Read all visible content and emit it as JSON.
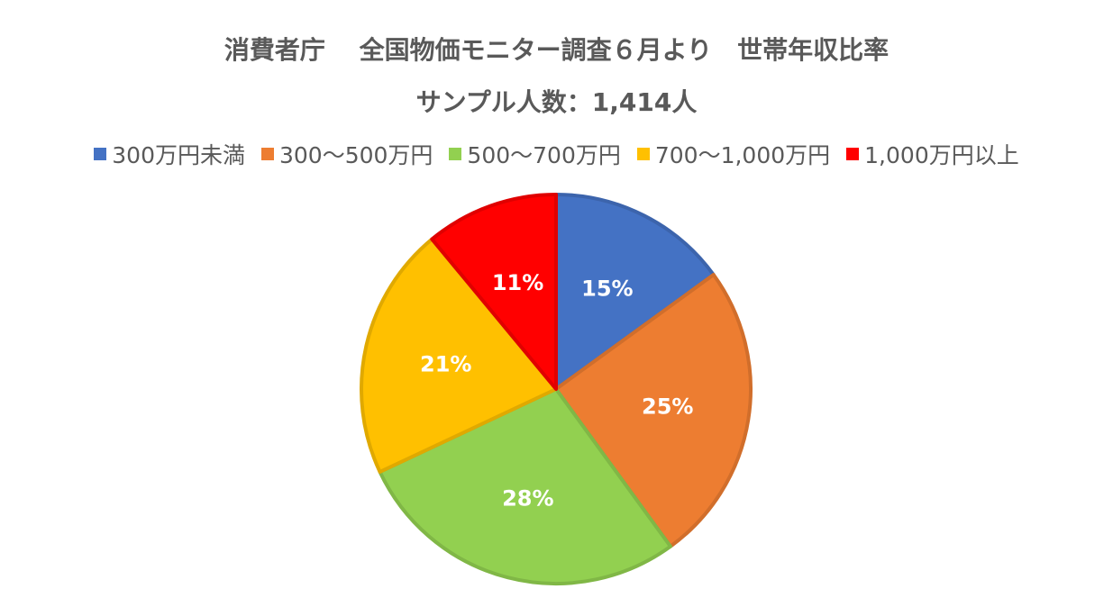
{
  "chart_data": {
    "type": "pie",
    "title": "消費者庁　 全国物価モニター調査６月より　世帯年収比率",
    "subtitle": "サンプル人数：1,414人",
    "categories": [
      "300万円未満",
      "300〜500万円",
      "500〜700万円",
      "700〜1,000万円",
      "1,000万円以上"
    ],
    "values": [
      15,
      25,
      28,
      21,
      11
    ],
    "data_labels": [
      "15%",
      "25%",
      "28%",
      "21%",
      "11%"
    ],
    "colors": [
      "#4472C4",
      "#ED7D31",
      "#92D050",
      "#FFC000",
      "#FF0000"
    ],
    "legend_position": "top"
  }
}
